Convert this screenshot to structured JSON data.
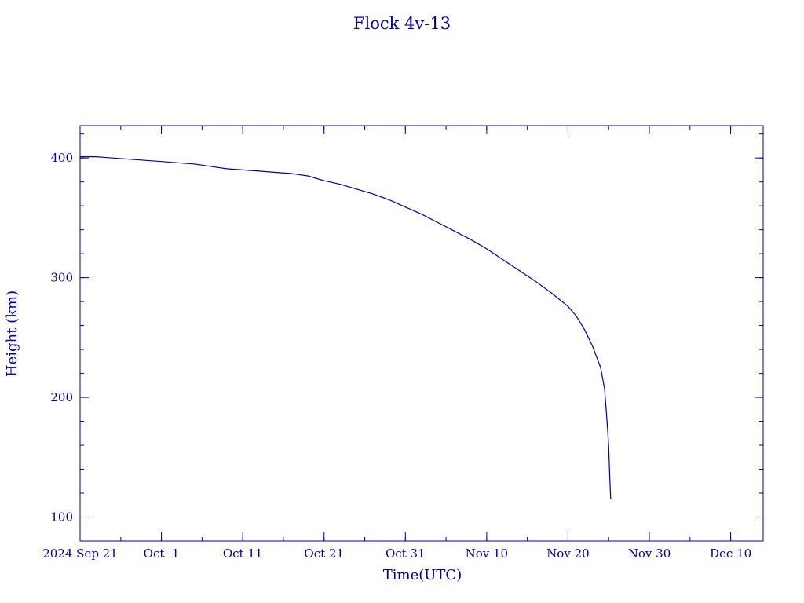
{
  "chart_data": {
    "type": "line",
    "title": "Flock 4v-13",
    "xlabel": "Time(UTC)",
    "ylabel": "Height (km)",
    "x_range": [
      "2024-09-21",
      "2024-12-14"
    ],
    "ylim": [
      80,
      427
    ],
    "x_ticks": [
      {
        "date": "2024-09-21",
        "label": "2024 Sep 21"
      },
      {
        "date": "2024-10-01",
        "label": "Oct  1"
      },
      {
        "date": "2024-10-11",
        "label": "Oct 11"
      },
      {
        "date": "2024-10-21",
        "label": "Oct 21"
      },
      {
        "date": "2024-10-31",
        "label": "Oct 31"
      },
      {
        "date": "2024-11-10",
        "label": "Nov 10"
      },
      {
        "date": "2024-11-20",
        "label": "Nov 20"
      },
      {
        "date": "2024-11-30",
        "label": "Nov 30"
      },
      {
        "date": "2024-12-10",
        "label": "Dec 10"
      }
    ],
    "y_ticks": [
      100,
      200,
      300,
      400
    ],
    "grid": false,
    "color": "#0000a0",
    "series": [
      {
        "name": "",
        "points": [
          [
            "2024-09-21",
            401
          ],
          [
            "2024-09-23",
            401
          ],
          [
            "2024-09-25",
            400
          ],
          [
            "2024-09-27",
            399
          ],
          [
            "2024-09-29",
            398
          ],
          [
            "2024-10-01",
            397
          ],
          [
            "2024-10-03",
            396
          ],
          [
            "2024-10-05",
            395
          ],
          [
            "2024-10-07",
            393
          ],
          [
            "2024-10-09",
            391
          ],
          [
            "2024-10-11",
            390
          ],
          [
            "2024-10-13",
            389
          ],
          [
            "2024-10-15",
            388
          ],
          [
            "2024-10-17",
            387
          ],
          [
            "2024-10-19",
            385
          ],
          [
            "2024-10-21",
            381
          ],
          [
            "2024-10-23",
            378
          ],
          [
            "2024-10-25",
            374
          ],
          [
            "2024-10-27",
            370
          ],
          [
            "2024-10-29",
            365
          ],
          [
            "2024-10-31",
            359
          ],
          [
            "2024-11-02",
            353
          ],
          [
            "2024-11-04",
            346
          ],
          [
            "2024-11-06",
            339
          ],
          [
            "2024-11-08",
            332
          ],
          [
            "2024-11-10",
            324
          ],
          [
            "2024-11-12",
            315
          ],
          [
            "2024-11-14",
            306
          ],
          [
            "2024-11-16",
            297
          ],
          [
            "2024-11-18",
            287
          ],
          [
            "2024-11-20",
            276
          ],
          [
            "2024-11-21",
            268
          ],
          [
            "2024-11-22",
            257
          ],
          [
            "2024-11-23",
            243
          ],
          [
            "2024-11-24",
            225
          ],
          [
            "2024-11-24 12:00",
            207
          ],
          [
            "2024-11-24 18:00",
            185
          ],
          [
            "2024-11-25",
            160
          ],
          [
            "2024-11-25 03:00",
            135
          ],
          [
            "2024-11-25 06:00",
            115
          ]
        ]
      }
    ]
  }
}
